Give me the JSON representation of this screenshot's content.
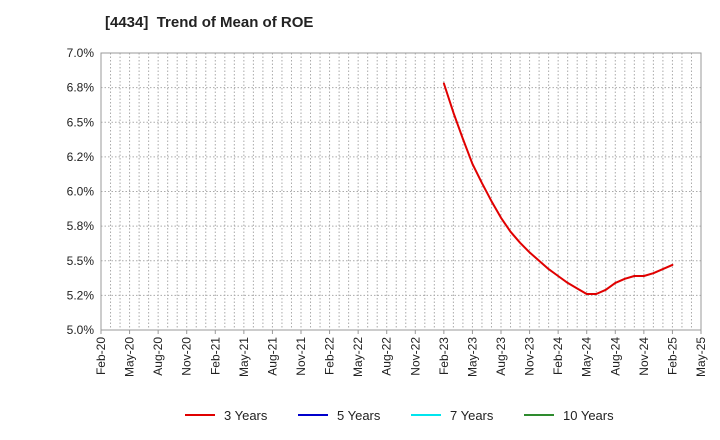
{
  "chart_data": {
    "type": "line",
    "title": "[4434]  Trend of Mean of ROE",
    "xlabel": "",
    "ylabel": "",
    "ylim": [
      5.0,
      7.0
    ],
    "yticks": [
      "7.0%",
      "6.8%",
      "6.5%",
      "6.2%",
      "6.0%",
      "5.8%",
      "5.5%",
      "5.2%",
      "5.0%"
    ],
    "x_categories": [
      "Feb-20",
      "May-20",
      "Aug-20",
      "Nov-20",
      "Feb-21",
      "May-21",
      "Aug-21",
      "Nov-21",
      "Feb-22",
      "May-22",
      "Aug-22",
      "Nov-22",
      "Feb-23",
      "May-23",
      "Aug-23",
      "Nov-23",
      "Feb-24",
      "May-24",
      "Aug-24",
      "Nov-24",
      "Feb-25",
      "May-25"
    ],
    "grid": true,
    "legend_position": "bottom",
    "series": [
      {
        "name": "3 Years",
        "color": "#e00000",
        "x": [
          "Feb-23",
          "Mar-23",
          "Apr-23",
          "May-23",
          "Jun-23",
          "Jul-23",
          "Aug-23",
          "Sep-23",
          "Oct-23",
          "Nov-23",
          "Dec-23",
          "Jan-24",
          "Feb-24",
          "Mar-24",
          "Apr-24",
          "May-24",
          "Jun-24",
          "Jul-24",
          "Aug-24",
          "Sep-24",
          "Oct-24",
          "Nov-24",
          "Dec-24",
          "Jan-25",
          "Feb-25"
        ],
        "values": [
          6.78,
          6.57,
          6.38,
          6.2,
          6.06,
          5.93,
          5.81,
          5.71,
          5.63,
          5.56,
          5.5,
          5.44,
          5.39,
          5.34,
          5.3,
          5.26,
          5.26,
          5.29,
          5.34,
          5.37,
          5.39,
          5.39,
          5.41,
          5.44,
          5.47
        ]
      },
      {
        "name": "5 Years",
        "color": "#0000cc",
        "x": [],
        "values": []
      },
      {
        "name": "7 Years",
        "color": "#00e5ee",
        "x": [],
        "values": []
      },
      {
        "name": "10 Years",
        "color": "#2e8b2e",
        "x": [],
        "values": []
      }
    ]
  }
}
